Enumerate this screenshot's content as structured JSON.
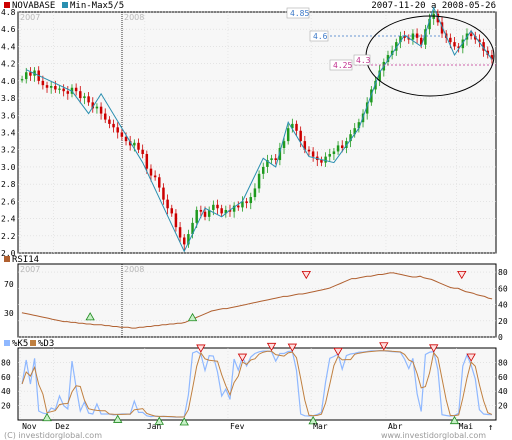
{
  "header": {
    "legend": [
      {
        "label": "NOVABASE",
        "color": "#cc0000"
      },
      {
        "label": "Min-Max5/5",
        "color": "#2a8fb0"
      }
    ],
    "date_range": "2007-11-20 a 2008-05-26"
  },
  "watermarks": {
    "y2007": "2007",
    "y2008": "2008"
  },
  "chart_data": [
    {
      "type": "candlestick",
      "panel": "price",
      "series_names": [
        "NOVABASE",
        "Min-Max5/5"
      ],
      "ylim": [
        2.0,
        4.8
      ],
      "yticks": [
        "4.8",
        "4.6",
        "4.4",
        "4.2",
        "4.0",
        "3.8",
        "3.6",
        "3.4",
        "3.2",
        "3.0",
        "2.8",
        "2.6",
        "2.4",
        "2.2",
        "2.0"
      ],
      "x_month_labels": [
        "Nov",
        "Dez",
        "Jan",
        "Fev",
        "Mar",
        "Abr",
        "Mai"
      ],
      "close": [
        4.02,
        4.1,
        4.06,
        4.12,
        4.0,
        3.95,
        3.92,
        3.94,
        3.9,
        3.91,
        3.88,
        3.85,
        3.92,
        3.88,
        3.8,
        3.82,
        3.75,
        3.68,
        3.7,
        3.62,
        3.55,
        3.5,
        3.46,
        3.4,
        3.35,
        3.3,
        3.25,
        3.28,
        3.2,
        3.15,
        2.98,
        2.9,
        2.88,
        2.76,
        2.62,
        2.52,
        2.46,
        2.3,
        2.18,
        2.1,
        2.22,
        2.35,
        2.5,
        2.48,
        2.42,
        2.5,
        2.56,
        2.52,
        2.46,
        2.5,
        2.48,
        2.55,
        2.53,
        2.6,
        2.58,
        2.65,
        2.75,
        2.92,
        3.0,
        3.08,
        3.1,
        3.08,
        3.22,
        3.3,
        3.45,
        3.5,
        3.42,
        3.3,
        3.2,
        3.18,
        3.12,
        3.08,
        3.05,
        3.12,
        3.15,
        3.18,
        3.25,
        3.22,
        3.3,
        3.38,
        3.45,
        3.52,
        3.62,
        3.75,
        3.9,
        4.0,
        4.12,
        4.22,
        4.3,
        4.35,
        4.45,
        4.52,
        4.5,
        4.48,
        4.55,
        4.5,
        4.42,
        4.6,
        4.72,
        4.78,
        4.68,
        4.55,
        4.5,
        4.45,
        4.4,
        4.38,
        4.48,
        4.55,
        4.52,
        4.48,
        4.45,
        4.35,
        4.3,
        4.25
      ],
      "zigzag": [
        [
          1,
          4.13
        ],
        [
          12,
          3.88
        ],
        [
          16,
          3.62
        ],
        [
          19,
          3.85
        ],
        [
          29,
          3.05
        ],
        [
          39,
          2.02
        ],
        [
          44,
          2.52
        ],
        [
          48,
          2.42
        ],
        [
          50,
          2.5
        ],
        [
          53,
          2.6
        ],
        [
          58,
          3.1
        ],
        [
          61,
          3.0
        ],
        [
          64,
          3.52
        ],
        [
          69,
          3.12
        ],
        [
          75,
          3.05
        ],
        [
          81,
          3.45
        ],
        [
          86,
          4.1
        ],
        [
          92,
          4.53
        ],
        [
          96,
          4.4
        ],
        [
          99,
          4.85
        ],
        [
          104,
          4.3
        ],
        [
          108,
          4.58
        ],
        [
          113,
          4.25
        ]
      ],
      "annotations": [
        "4.85",
        "4.6",
        "4.25",
        "4.3"
      ]
    },
    {
      "type": "line",
      "panel": "rsi",
      "series": [
        {
          "name": "RSI14",
          "color": "#b06030"
        }
      ],
      "ylim": [
        0,
        90
      ],
      "yticks": [
        "80",
        "60",
        "40",
        "20",
        "0"
      ],
      "left_ticks": [
        "70",
        "30"
      ],
      "values": [
        30,
        29,
        28,
        27,
        26,
        25,
        24,
        23,
        22,
        21,
        20,
        19,
        19,
        18,
        18,
        17,
        17,
        16,
        16,
        15,
        15,
        15,
        14,
        14,
        13,
        13,
        12,
        12,
        12,
        11,
        11,
        12,
        12,
        13,
        13,
        14,
        14,
        15,
        15,
        16,
        16,
        17,
        17,
        18,
        20,
        22,
        24,
        26,
        28,
        30,
        32,
        33,
        34,
        35,
        35,
        36,
        37,
        38,
        39,
        40,
        41,
        42,
        43,
        44,
        45,
        46,
        47,
        48,
        49,
        50,
        50,
        51,
        52,
        53,
        53,
        54,
        55,
        56,
        57,
        58,
        59,
        60,
        62,
        64,
        66,
        68,
        70,
        72,
        72,
        73,
        74,
        75,
        75,
        76,
        77,
        77,
        78,
        79,
        79,
        78,
        77,
        76,
        75,
        74,
        74,
        75,
        73,
        72,
        71,
        69,
        67,
        65,
        63,
        61,
        60,
        60,
        58,
        56,
        55,
        54,
        52,
        51,
        50,
        48,
        47
      ],
      "triangles_up": [
        [
          18,
          26
        ],
        [
          45,
          25
        ]
      ],
      "triangles_down": [
        [
          75,
          76
        ],
        [
          116,
          76
        ]
      ]
    },
    {
      "type": "line",
      "panel": "stochastic",
      "series": [
        {
          "name": "%K5",
          "color": "#8fb8ff"
        },
        {
          "name": "%D3",
          "color": "#c08040"
        }
      ],
      "ylim": [
        0,
        100
      ],
      "yticks": [
        "80",
        "60",
        "40",
        "20"
      ],
      "x_month_labels": [
        "Nov",
        "Dez",
        "Jan",
        "Fev",
        "Mar",
        "Abr",
        "Mai"
      ]
    }
  ],
  "footer": {
    "left": "(C) investidorglobal.com",
    "right": "www.investidorglobal.com"
  }
}
